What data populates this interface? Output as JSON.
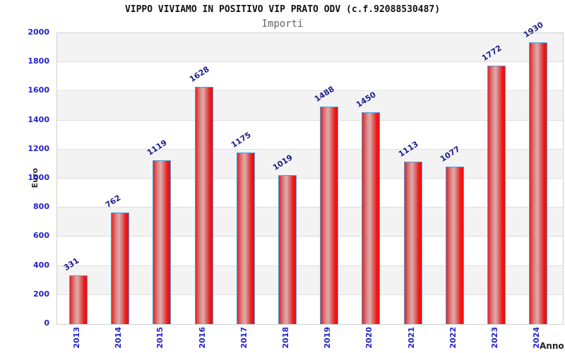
{
  "chart_data": {
    "type": "bar",
    "title": "VIPPO VIVIAMO IN POSITIVO VIP PRATO ODV (c.f.92088530487)",
    "subtitle": "Importi",
    "xlabel": "Anno",
    "ylabel": "Euro",
    "categories": [
      "2013",
      "2014",
      "2015",
      "2016",
      "2017",
      "2018",
      "2019",
      "2020",
      "2021",
      "2022",
      "2023",
      "2024"
    ],
    "values": [
      331,
      762,
      1119,
      1628,
      1175,
      1019,
      1488,
      1450,
      1113,
      1077,
      1772,
      1930
    ],
    "ylim": [
      0,
      2000
    ],
    "ytick_step": 200,
    "yticks": [
      0,
      200,
      400,
      600,
      800,
      1000,
      1200,
      1400,
      1600,
      1800,
      2000
    ],
    "grid": true,
    "legend_position": "none",
    "colors": {
      "bar_fill": "#ee1515",
      "bar_highlight": "#dfabab",
      "bar_border": "#4f9ddd",
      "axis_tick_label": "#2222cc",
      "value_label": "#1e1e8c",
      "axis_title": "#333333",
      "title": "#111111",
      "subtitle_text": "#666666",
      "band_gray": "#f3f3f3",
      "gridline": "#dedede"
    }
  }
}
